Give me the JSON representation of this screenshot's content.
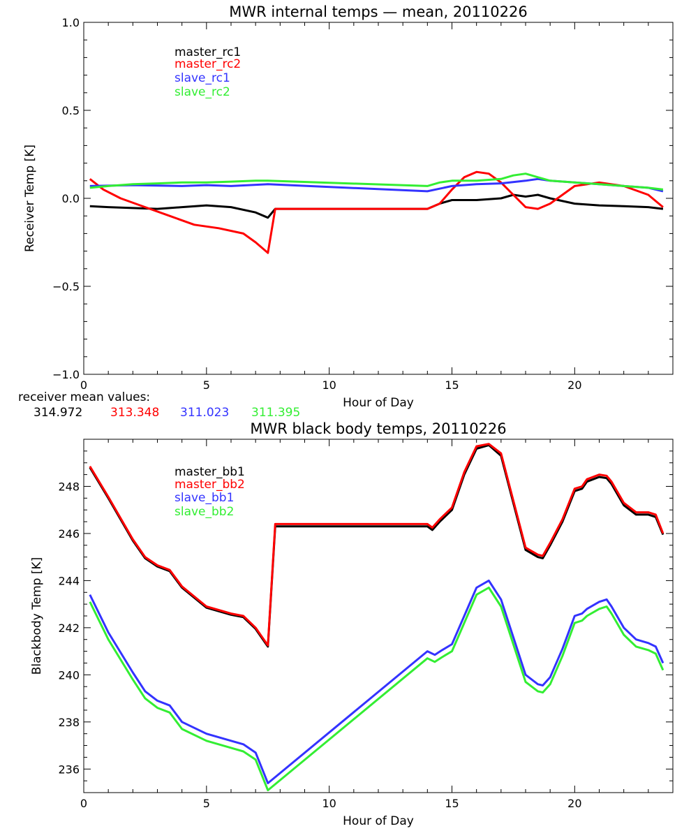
{
  "chart_data": [
    {
      "type": "line",
      "title": "MWR internal temps — mean, 20110226",
      "xlabel": "Hour of Day",
      "ylabel": "Receiver Temp [K]",
      "xlim": [
        0,
        24
      ],
      "ylim": [
        -1.0,
        1.0
      ],
      "xticks": [
        0,
        5,
        10,
        15,
        20
      ],
      "yticks": [
        -1.0,
        -0.5,
        0.0,
        0.5,
        1.0
      ],
      "ytick_labels": [
        "−1.0",
        "−0.5",
        "0.0",
        "0.5",
        "1.0"
      ],
      "legend_placement": "top-left",
      "series": [
        {
          "name": "master_rc1",
          "color": "#000000",
          "x": [
            0.25,
            1,
            2,
            3,
            4,
            5,
            6,
            7,
            7.5,
            7.8,
            14,
            14.5,
            15,
            16,
            17,
            17.5,
            18,
            18.5,
            19,
            20,
            21,
            22,
            23,
            23.6
          ],
          "y": [
            -0.045,
            -0.05,
            -0.055,
            -0.06,
            -0.05,
            -0.04,
            -0.05,
            -0.08,
            -0.11,
            -0.06,
            -0.06,
            -0.03,
            -0.01,
            -0.01,
            0.0,
            0.02,
            0.01,
            0.02,
            0.0,
            -0.03,
            -0.04,
            -0.045,
            -0.05,
            -0.06
          ]
        },
        {
          "name": "master_rc2",
          "color": "#ff0000",
          "x": [
            0.25,
            0.8,
            1.5,
            2.5,
            3.5,
            4.5,
            5.5,
            6.5,
            7,
            7.5,
            7.8,
            14,
            14.5,
            15,
            15.5,
            16,
            16.5,
            17,
            17.5,
            18,
            18.5,
            19,
            20,
            21,
            22,
            23,
            23.6
          ],
          "y": [
            0.11,
            0.05,
            0.0,
            -0.05,
            -0.1,
            -0.15,
            -0.17,
            -0.2,
            -0.25,
            -0.31,
            -0.06,
            -0.06,
            -0.03,
            0.05,
            0.12,
            0.15,
            0.14,
            0.09,
            0.02,
            -0.05,
            -0.06,
            -0.03,
            0.07,
            0.09,
            0.07,
            0.02,
            -0.05
          ]
        },
        {
          "name": "slave_rc1",
          "color": "#3333ff",
          "x": [
            0.25,
            2,
            4,
            5,
            6,
            7.5,
            14,
            15,
            16,
            17,
            18,
            18.5,
            19,
            20,
            21,
            22,
            23,
            23.6
          ],
          "y": [
            0.07,
            0.075,
            0.07,
            0.075,
            0.07,
            0.08,
            0.04,
            0.07,
            0.08,
            0.085,
            0.1,
            0.11,
            0.1,
            0.09,
            0.08,
            0.07,
            0.06,
            0.04
          ]
        },
        {
          "name": "slave_rc2",
          "color": "#33ee33",
          "x": [
            0.25,
            1,
            2,
            3,
            4,
            5,
            6,
            7,
            7.5,
            14,
            14.5,
            15,
            16,
            17,
            17.5,
            18,
            18.5,
            19,
            20,
            21,
            22,
            23,
            23.6
          ],
          "y": [
            0.06,
            0.07,
            0.08,
            0.085,
            0.09,
            0.09,
            0.095,
            0.1,
            0.1,
            0.07,
            0.09,
            0.1,
            0.1,
            0.11,
            0.13,
            0.14,
            0.12,
            0.1,
            0.09,
            0.08,
            0.07,
            0.06,
            0.05
          ]
        }
      ],
      "mean_values_label": "receiver mean values:",
      "mean_values": [
        {
          "value": "314.972",
          "color": "#000000"
        },
        {
          "value": "313.348",
          "color": "#ff0000"
        },
        {
          "value": "311.023",
          "color": "#3333ff"
        },
        {
          "value": "311.395",
          "color": "#33ee33"
        }
      ]
    },
    {
      "type": "line",
      "title": "MWR black body temps, 20110226",
      "xlabel": "Hour of Day",
      "ylabel": "Blackbody Temp [K]",
      "xlim": [
        0,
        24
      ],
      "ylim": [
        235,
        250
      ],
      "xticks": [
        0,
        5,
        10,
        15,
        20
      ],
      "yticks": [
        236,
        238,
        240,
        242,
        244,
        246,
        248
      ],
      "legend_placement": "top-left",
      "series": [
        {
          "name": "master_bb1",
          "color": "#000000",
          "x": [
            0.25,
            1,
            2,
            2.5,
            3,
            3.5,
            4,
            5,
            6,
            6.5,
            7,
            7.5,
            7.8,
            14,
            14.2,
            14.5,
            15,
            15.5,
            16,
            16.5,
            17,
            17.5,
            18,
            18.5,
            18.7,
            19,
            19.5,
            20,
            20.3,
            20.5,
            21,
            21.3,
            21.5,
            22,
            22.5,
            23,
            23.3,
            23.6
          ],
          "y": [
            248.8,
            247.5,
            245.7,
            244.95,
            244.6,
            244.4,
            243.7,
            242.85,
            242.55,
            242.45,
            241.95,
            241.2,
            246.3,
            246.3,
            246.15,
            246.5,
            247,
            248.5,
            249.6,
            249.75,
            249.3,
            247.3,
            245.3,
            245.0,
            244.95,
            245.5,
            246.5,
            247.8,
            247.9,
            248.2,
            248.4,
            248.35,
            248.1,
            247.2,
            246.8,
            246.8,
            246.7,
            245.95
          ]
        },
        {
          "name": "master_bb2",
          "color": "#ff0000",
          "x": [
            0.25,
            1,
            2,
            2.5,
            3,
            3.5,
            4,
            5,
            6,
            6.5,
            7,
            7.5,
            7.8,
            14,
            14.2,
            14.5,
            15,
            15.5,
            16,
            16.5,
            17,
            17.5,
            18,
            18.5,
            18.7,
            19,
            19.5,
            20,
            20.3,
            20.5,
            21,
            21.3,
            21.5,
            22,
            22.5,
            23,
            23.3,
            23.6
          ],
          "y": [
            248.85,
            247.55,
            245.75,
            245.0,
            244.65,
            244.45,
            243.75,
            242.9,
            242.6,
            242.5,
            242.0,
            241.25,
            246.4,
            246.4,
            246.25,
            246.6,
            247.1,
            248.6,
            249.7,
            249.8,
            249.4,
            247.4,
            245.4,
            245.1,
            245.05,
            245.6,
            246.6,
            247.9,
            248.0,
            248.3,
            248.5,
            248.45,
            248.2,
            247.3,
            246.9,
            246.9,
            246.8,
            246.0
          ]
        },
        {
          "name": "slave_bb1",
          "color": "#3333ff",
          "x": [
            0.25,
            1,
            2,
            2.5,
            3,
            3.5,
            4,
            5,
            6,
            6.5,
            7,
            7.5,
            14,
            14.3,
            14.6,
            15,
            15.5,
            16,
            16.5,
            17,
            17.5,
            18,
            18.5,
            18.7,
            19,
            19.5,
            20,
            20.3,
            20.5,
            21,
            21.3,
            21.5,
            22,
            22.5,
            23,
            23.3,
            23.6
          ],
          "y": [
            243.4,
            241.8,
            240.1,
            239.3,
            238.9,
            238.7,
            238.0,
            237.5,
            237.2,
            237.05,
            236.7,
            235.4,
            241.0,
            240.85,
            241.05,
            241.3,
            242.5,
            243.7,
            244.0,
            243.2,
            241.6,
            240.0,
            239.6,
            239.55,
            239.9,
            241.1,
            242.5,
            242.6,
            242.8,
            243.1,
            243.2,
            242.9,
            242.0,
            241.5,
            241.35,
            241.2,
            240.5
          ]
        },
        {
          "name": "slave_bb2",
          "color": "#33ee33",
          "x": [
            0.25,
            1,
            2,
            2.5,
            3,
            3.5,
            4,
            5,
            6,
            6.5,
            7,
            7.5,
            14,
            14.3,
            14.6,
            15,
            15.5,
            16,
            16.5,
            17,
            17.5,
            18,
            18.5,
            18.7,
            19,
            19.5,
            20,
            20.3,
            20.5,
            21,
            21.3,
            21.5,
            22,
            22.5,
            23,
            23.3,
            23.6
          ],
          "y": [
            243.1,
            241.5,
            239.8,
            239.0,
            238.6,
            238.4,
            237.7,
            237.2,
            236.9,
            236.75,
            236.4,
            235.1,
            240.7,
            240.55,
            240.75,
            241.0,
            242.2,
            243.4,
            243.7,
            242.9,
            241.3,
            239.7,
            239.3,
            239.25,
            239.6,
            240.8,
            242.2,
            242.3,
            242.5,
            242.8,
            242.9,
            242.6,
            241.7,
            241.2,
            241.05,
            240.9,
            240.2
          ]
        }
      ]
    }
  ]
}
